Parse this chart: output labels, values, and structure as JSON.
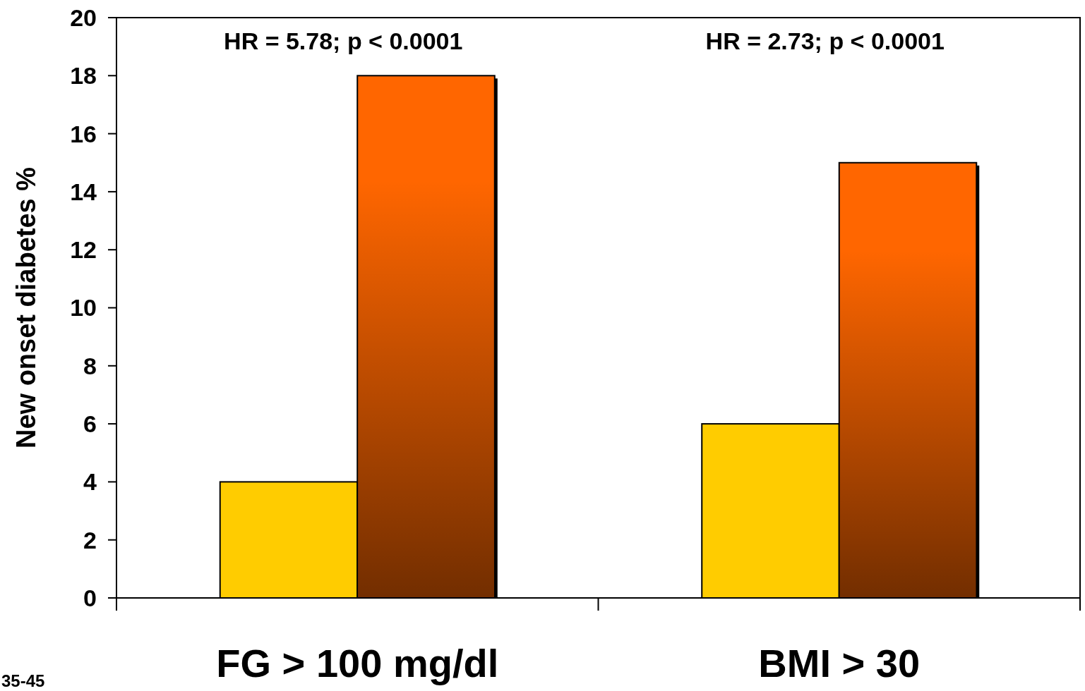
{
  "chart_data": {
    "type": "bar",
    "ylabel": "New onset diabetes %",
    "categories": [
      "FG > 100 mg/dl",
      "BMI > 30"
    ],
    "series": [
      {
        "color": "#ffcc00",
        "values": [
          4,
          6
        ]
      },
      {
        "color": "#ff6600",
        "values": [
          18,
          15
        ]
      }
    ],
    "ylim": [
      0,
      20
    ],
    "yticks": [
      0,
      2,
      4,
      6,
      8,
      10,
      12,
      14,
      16,
      18,
      20
    ],
    "grid": false,
    "annotations": [
      "HR = 5.78; p < 0.0001",
      "HR = 2.73; p < 0.0001",
      "35-45"
    ]
  }
}
